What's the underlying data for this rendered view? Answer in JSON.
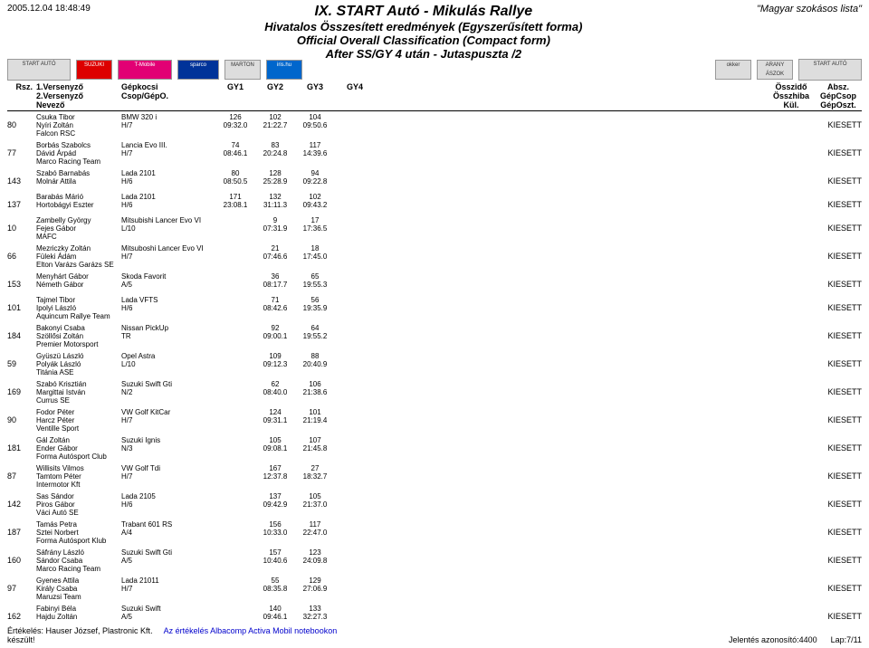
{
  "timestamp": "2005.12.04 18:48:49",
  "title_main": "IX. START Autó - Mikulás Rallye",
  "title_line2": "Hivatalos Összesített eredmények (Egyszerűsített forma)",
  "title_line3": "Official Overall Classification (Compact form)",
  "title_line4": "After SS/GY 4 után - Jutaspuszta /2",
  "top_right": "\"Magyar szokásos lista\"",
  "col_headers": {
    "rsz": "Rsz.",
    "names": [
      "1.Versenyző",
      "2.Versenyző",
      "Nevező"
    ],
    "car": [
      "Gépkocsi",
      "Csop/GépO."
    ],
    "gy": [
      "GY1",
      "GY2",
      "GY3",
      "GY4"
    ],
    "right": [
      [
        "Összidő",
        "Absz."
      ],
      [
        "Összhiba",
        "GépCsop"
      ],
      [
        "Kül.",
        "GépOszt."
      ]
    ]
  },
  "rows": [
    {
      "rsz": "80",
      "n1": "Csuka Tibor",
      "n2": "Nyíri Zoltán",
      "n3": "Falcon RSC",
      "car": "BMW 320 i",
      "grp": "H/7",
      "gy": [
        [
          "126",
          "102",
          "104",
          ""
        ],
        [
          "09:32.0",
          "21:22.7",
          "09:50.6",
          ""
        ]
      ],
      "status": "KIESETT"
    },
    {
      "rsz": "77",
      "n1": "Borbás Szabolcs",
      "n2": "Dávid Árpád",
      "n3": "Marco Racing Team",
      "car": "Lancia Evo III.",
      "grp": "H/7",
      "gy": [
        [
          "74",
          "83",
          "117",
          ""
        ],
        [
          "08:46.1",
          "20:24.8",
          "14:39.6",
          ""
        ]
      ],
      "status": "KIESETT"
    },
    {
      "rsz": "143",
      "n1": "Szabó Barnabás",
      "n2": "Molnár Attila",
      "n3": "",
      "car": "Lada 2101",
      "grp": "H/6",
      "gy": [
        [
          "80",
          "128",
          "94",
          ""
        ],
        [
          "08:50.5",
          "25:28.9",
          "09:22.8",
          ""
        ]
      ],
      "status": "KIESETT"
    },
    {
      "rsz": "137",
      "n1": "Barabás Márió",
      "n2": "Hortobágyi Eszter",
      "n3": "",
      "car": "Lada 2101",
      "grp": "H/6",
      "gy": [
        [
          "171",
          "132",
          "102",
          ""
        ],
        [
          "23:08.1",
          "31:11.3",
          "09:43.2",
          ""
        ]
      ],
      "status": "KIESETT",
      "gap": true
    },
    {
      "rsz": "10",
      "n1": "Zambelly György",
      "n2": "Fejes Gábor",
      "n3": "MAFC",
      "car": "Mitsubishi Lancer Evo VI",
      "grp": "L/10",
      "gy": [
        [
          "",
          "9",
          "17",
          ""
        ],
        [
          "",
          "07:31.9",
          "17:36.5",
          ""
        ]
      ],
      "status": "KIESETT",
      "gap": true
    },
    {
      "rsz": "66",
      "n1": "Mezriczky Zoltán",
      "n2": "Füleki Ádám",
      "n3": "Elton Varázs Garázs SE",
      "car": "Mitsuboshi Lancer Evo VI",
      "grp": "H/7",
      "gy": [
        [
          "",
          "21",
          "18",
          ""
        ],
        [
          "",
          "07:46.6",
          "17:45.0",
          ""
        ]
      ],
      "status": "KIESETT"
    },
    {
      "rsz": "153",
      "n1": "Menyhárt Gábor",
      "n2": "Németh Gábor",
      "n3": "",
      "car": "Skoda Favorit",
      "grp": "A/5",
      "gy": [
        [
          "",
          "36",
          "65",
          ""
        ],
        [
          "",
          "08:17.7",
          "19:55.3",
          ""
        ]
      ],
      "status": "KIESETT"
    },
    {
      "rsz": "101",
      "n1": "Tajmel Tibor",
      "n2": "Ipolyi László",
      "n3": "Aquincum Rallye Team",
      "car": "Lada VFTS",
      "grp": "H/6",
      "gy": [
        [
          "",
          "71",
          "56",
          ""
        ],
        [
          "",
          "08:42.6",
          "19:35.9",
          ""
        ]
      ],
      "status": "KIESETT",
      "gap": true
    },
    {
      "rsz": "184",
      "n1": "Bakonyi Csaba",
      "n2": "Szöllősi Zoltán",
      "n3": "Premier Motorsport",
      "car": "Nissan PickUp",
      "grp": "TR",
      "gy": [
        [
          "",
          "92",
          "64",
          ""
        ],
        [
          "",
          "09:00.1",
          "19:55.2",
          ""
        ]
      ],
      "status": "KIESETT"
    },
    {
      "rsz": "59",
      "n1": "Gyüszü László",
      "n2": "Polyák László",
      "n3": "Titánia ASE",
      "car": "Opel Astra",
      "grp": "L/10",
      "gy": [
        [
          "",
          "109",
          "88",
          ""
        ],
        [
          "",
          "09:12.3",
          "20:40.9",
          ""
        ]
      ],
      "status": "KIESETT"
    },
    {
      "rsz": "169",
      "n1": "Szabó Krisztián",
      "n2": "Margittai István",
      "n3": "Currus SE",
      "car": "Suzuki Swift Gti",
      "grp": "N/2",
      "gy": [
        [
          "",
          "62",
          "106",
          ""
        ],
        [
          "",
          "08:40.0",
          "21:38.6",
          ""
        ]
      ],
      "status": "KIESETT"
    },
    {
      "rsz": "90",
      "n1": "Fodor Péter",
      "n2": "Harcz Péter",
      "n3": "Ventille Sport",
      "car": "VW Golf KitCar",
      "grp": "H/7",
      "gy": [
        [
          "",
          "124",
          "101",
          ""
        ],
        [
          "",
          "09:31.1",
          "21:19.4",
          ""
        ]
      ],
      "status": "KIESETT"
    },
    {
      "rsz": "181",
      "n1": "Gál Zoltán",
      "n2": "Ender Gábor",
      "n3": "Forma Autósport Club",
      "car": "Suzuki Ignis",
      "grp": "N/3",
      "gy": [
        [
          "",
          "105",
          "107",
          ""
        ],
        [
          "",
          "09:08.1",
          "21:45.8",
          ""
        ]
      ],
      "status": "KIESETT"
    },
    {
      "rsz": "87",
      "n1": "Willisits Vilmos",
      "n2": "Tamtom Péter",
      "n3": "Intermotor Kft",
      "car": "VW Golf Tdi",
      "grp": "H/7",
      "gy": [
        [
          "",
          "167",
          "27",
          ""
        ],
        [
          "",
          "12:37.8",
          "18:32.7",
          ""
        ]
      ],
      "status": "KIESETT"
    },
    {
      "rsz": "142",
      "n1": "Sas Sándor",
      "n2": "Piros Gábor",
      "n3": "Váci Autó SE",
      "car": "Lada 2105",
      "grp": "H/6",
      "gy": [
        [
          "",
          "137",
          "105",
          ""
        ],
        [
          "",
          "09:42.9",
          "21:37.0",
          ""
        ]
      ],
      "status": "KIESETT"
    },
    {
      "rsz": "187",
      "n1": "Tamás Petra",
      "n2": "Sztei Norbert",
      "n3": "Forma Autósport Klub",
      "car": "Trabant 601 RS",
      "grp": "A/4",
      "gy": [
        [
          "",
          "156",
          "117",
          ""
        ],
        [
          "",
          "10:33.0",
          "22:47.0",
          ""
        ]
      ],
      "status": "KIESETT"
    },
    {
      "rsz": "160",
      "n1": "Sáfrány László",
      "n2": "Sándor Csaba",
      "n3": "Marco Racing Team",
      "car": "Suzuki Swift Gti",
      "grp": "A/5",
      "gy": [
        [
          "",
          "157",
          "123",
          ""
        ],
        [
          "",
          "10:40.6",
          "24:09.8",
          ""
        ]
      ],
      "status": "KIESETT"
    },
    {
      "rsz": "97",
      "n1": "Gyenes Attila",
      "n2": "Király Csaba",
      "n3": "Maruzsi Team",
      "car": "Lada 21011",
      "grp": "H/7",
      "gy": [
        [
          "",
          "55",
          "129",
          ""
        ],
        [
          "",
          "08:35.8",
          "27:06.9",
          ""
        ]
      ],
      "status": "KIESETT"
    },
    {
      "rsz": "162",
      "n1": "Fabinyi Béla",
      "n2": "Hajdu Zoltán",
      "n3": "",
      "car": "Suzuki Swift",
      "grp": "A/5",
      "gy": [
        [
          "",
          "140",
          "133",
          ""
        ],
        [
          "",
          "09:46.1",
          "32:27.3",
          ""
        ]
      ],
      "status": "KIESETT"
    }
  ],
  "footer": {
    "left1": "Értékelés: Hauser József, Plastronic Kft.",
    "left2": "készült!",
    "mid": "Az értékelés Albacomp Activa Mobil notebookon",
    "right1": "Jelentés azonosító:4400",
    "right2": "Lap:7/11"
  }
}
